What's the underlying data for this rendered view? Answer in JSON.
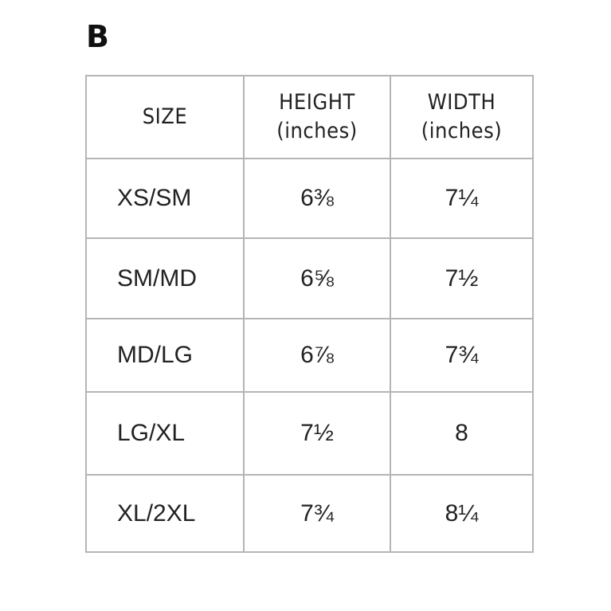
{
  "panel": {
    "label": "B"
  },
  "table": {
    "headers": [
      {
        "line1": "SIZE",
        "line2": ""
      },
      {
        "line1": "HEIGHT",
        "line2": "(inches)"
      },
      {
        "line1": "WIDTH",
        "line2": "(inches)"
      }
    ],
    "rows": [
      {
        "size": "XS/SM",
        "height": "6⅜",
        "width": "7¼"
      },
      {
        "size": "SM/MD",
        "height": "6⅝",
        "width": "7½"
      },
      {
        "size": "MD/LG",
        "height": "6⅞",
        "width": "7¾"
      },
      {
        "size": "LG/XL",
        "height": "7½",
        "width": "8"
      },
      {
        "size": "XL/2XL",
        "height": "7¾",
        "width": "8¼"
      }
    ]
  },
  "colors": {
    "border": "#b5b5b5",
    "text": "#222222",
    "background": "#ffffff"
  }
}
